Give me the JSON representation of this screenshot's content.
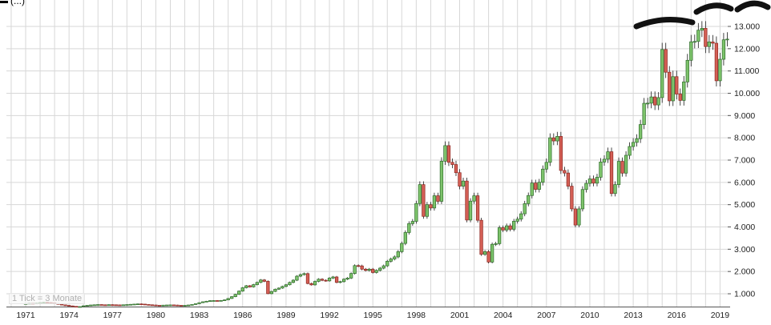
{
  "title_partial": "(...)",
  "tick_note": "1 Tick = 3 Monate",
  "colors": {
    "up_fill": "#7dc36b",
    "up_border": "#2e6b2a",
    "down_fill": "#d45f55",
    "down_border": "#8e2620",
    "wick": "#1a1a1a",
    "grid": "#d7d7d7",
    "axis": "#555555",
    "label": "#222222",
    "annotation": "#111111",
    "note": "#b0b0b0"
  },
  "chart_data": {
    "type": "candlestick",
    "title": "",
    "xlabel": "",
    "ylabel": "",
    "tick_interval": "1 Tick = 3 Monate",
    "start_year": 1971,
    "interval_years": 0.25,
    "ylim": [
      400,
      14200
    ],
    "grid": true,
    "y_ticks": [
      {
        "value": 1000,
        "label": "1.000"
      },
      {
        "value": 2000,
        "label": "2.000"
      },
      {
        "value": 3000,
        "label": "3.000"
      },
      {
        "value": 4000,
        "label": "4.000"
      },
      {
        "value": 5000,
        "label": "5.000"
      },
      {
        "value": 6000,
        "label": "6.000"
      },
      {
        "value": 7000,
        "label": "7.000"
      },
      {
        "value": 8000,
        "label": "8.000"
      },
      {
        "value": 9000,
        "label": "9.000"
      },
      {
        "value": 10000,
        "label": "10.000"
      },
      {
        "value": 11000,
        "label": "11.000"
      },
      {
        "value": 12000,
        "label": "12.000"
      },
      {
        "value": 13000,
        "label": "13.000"
      }
    ],
    "x_ticks": [
      1971,
      1974,
      1977,
      1980,
      1983,
      1986,
      1989,
      1992,
      1995,
      1998,
      2001,
      2004,
      2007,
      2010,
      2013,
      2016,
      2019
    ],
    "first_open": 548,
    "quarterly_closes": [
      560,
      575,
      565,
      580,
      600,
      615,
      605,
      590,
      560,
      530,
      500,
      480,
      455,
      435,
      410,
      425,
      460,
      480,
      495,
      505,
      515,
      505,
      500,
      510,
      505,
      500,
      495,
      505,
      515,
      525,
      535,
      545,
      535,
      520,
      505,
      495,
      485,
      480,
      488,
      495,
      500,
      492,
      482,
      476,
      482,
      495,
      520,
      555,
      600,
      640,
      665,
      690,
      695,
      680,
      700,
      725,
      790,
      870,
      975,
      1120,
      1270,
      1360,
      1310,
      1410,
      1510,
      1620,
      1560,
      1005,
      1105,
      1205,
      1255,
      1330,
      1405,
      1510,
      1610,
      1790,
      1860,
      1905,
      1460,
      1400,
      1555,
      1655,
      1605,
      1580,
      1705,
      1755,
      1510,
      1545,
      1655,
      1705,
      1910,
      2265,
      2250,
      2105,
      2050,
      2105,
      1955,
      2050,
      2150,
      2255,
      2460,
      2560,
      2655,
      2890,
      3260,
      3750,
      4150,
      4250,
      5050,
      5900,
      4475,
      5000,
      4850,
      5400,
      5150,
      6950,
      7650,
      6900,
      6800,
      6435,
      5830,
      6060,
      4310,
      5160,
      5400,
      4300,
      2770,
      2890,
      2425,
      3220,
      3250,
      3965,
      3860,
      4050,
      3895,
      4255,
      4350,
      4590,
      5045,
      5410,
      5970,
      5685,
      6005,
      6595,
      6900,
      8000,
      7860,
      8065,
      6535,
      6420,
      5830,
      4810,
      4085,
      4810,
      5680,
      5955,
      6155,
      5965,
      6230,
      6915,
      7040,
      7375,
      5500,
      5900,
      6945,
      6415,
      7215,
      7610,
      7795,
      7960,
      8595,
      9550,
      9555,
      9835,
      9475,
      9805,
      11965,
      10945,
      9660,
      10745,
      9965,
      9680,
      10510,
      11480,
      12310,
      12325,
      12830,
      12915,
      12095,
      12305,
      12245,
      10560,
      11525,
      12400,
      12430
    ]
  },
  "annotations": {
    "strokes": [
      "M794 33 Q829 19 864 28",
      "M869 15 Q891 1 912 11",
      "M920 12 Q939 -2 958 9"
    ]
  }
}
